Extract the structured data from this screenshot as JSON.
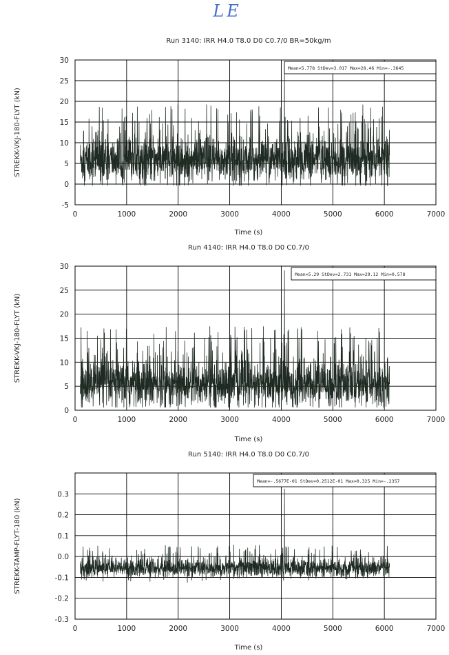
{
  "annotation": "LE",
  "chart_data": [
    {
      "type": "line",
      "title": "Run 3140: IRR H4.0 T8.0 D0 C0.7/0 BR=50kg/m",
      "xlabel": "Time (s)",
      "ylabel": "STREKK-VKJ-180-FLYT (kN)",
      "xlim": [
        0,
        7000
      ],
      "ylim": [
        -5,
        30
      ],
      "xticks": [
        0,
        1000,
        2000,
        3000,
        4000,
        5000,
        6000,
        7000
      ],
      "yticks": [
        -5,
        0,
        5,
        10,
        15,
        20,
        25,
        30
      ],
      "grid": true,
      "stats_text": "Mean=5.778 StDev=3.017 Max=28.46 Min=-.3645",
      "signal": {
        "t_start": 100,
        "t_end": 6100,
        "mean": 5.778,
        "stdev": 3.017,
        "max": 28.46,
        "min": -0.3645
      }
    },
    {
      "type": "line",
      "title": "Run 4140: IRR H4.0 T8.0 D0 C0.7/0",
      "xlabel": "Time (s)",
      "ylabel": "STREKK-VKJ-180-FLYT (kN)",
      "xlim": [
        0,
        7000
      ],
      "ylim": [
        0,
        30
      ],
      "xticks": [
        0,
        1000,
        2000,
        3000,
        4000,
        5000,
        6000,
        7000
      ],
      "yticks": [
        0,
        5,
        10,
        15,
        20,
        25,
        30
      ],
      "grid": true,
      "stats_text": "Mean=5.29 StDev=2.731 Max=29.12 Min=0.578",
      "signal": {
        "t_start": 100,
        "t_end": 6100,
        "mean": 5.29,
        "stdev": 2.731,
        "max": 29.12,
        "min": 0.578
      }
    },
    {
      "type": "line",
      "title": "Run 5140: IRR H4.0 T8.0 D0 C0.7/0",
      "xlabel": "Time (s)",
      "ylabel": "STREKK-TAMP-FLYT-180 (kN)",
      "xlim": [
        0,
        7000
      ],
      "ylim": [
        -0.3,
        0.4
      ],
      "xticks": [
        0,
        1000,
        2000,
        3000,
        4000,
        5000,
        6000,
        7000
      ],
      "yticks": [
        -0.3,
        -0.2,
        -0.1,
        0.0,
        0.1,
        0.2,
        0.3
      ],
      "ytick_labels": [
        "-0.3",
        "-0.2",
        "-0.1",
        "0.0",
        "0.1",
        "0.2",
        "0.3"
      ],
      "grid": true,
      "stats_text": "Mean=-.5677E-01 StDev=0.2512E-01 Max=0.325 Min=-.2357",
      "signal": {
        "t_start": 100,
        "t_end": 6100,
        "mean": -0.05677,
        "stdev": 0.02512,
        "max": 0.325,
        "min": -0.2357
      }
    }
  ]
}
